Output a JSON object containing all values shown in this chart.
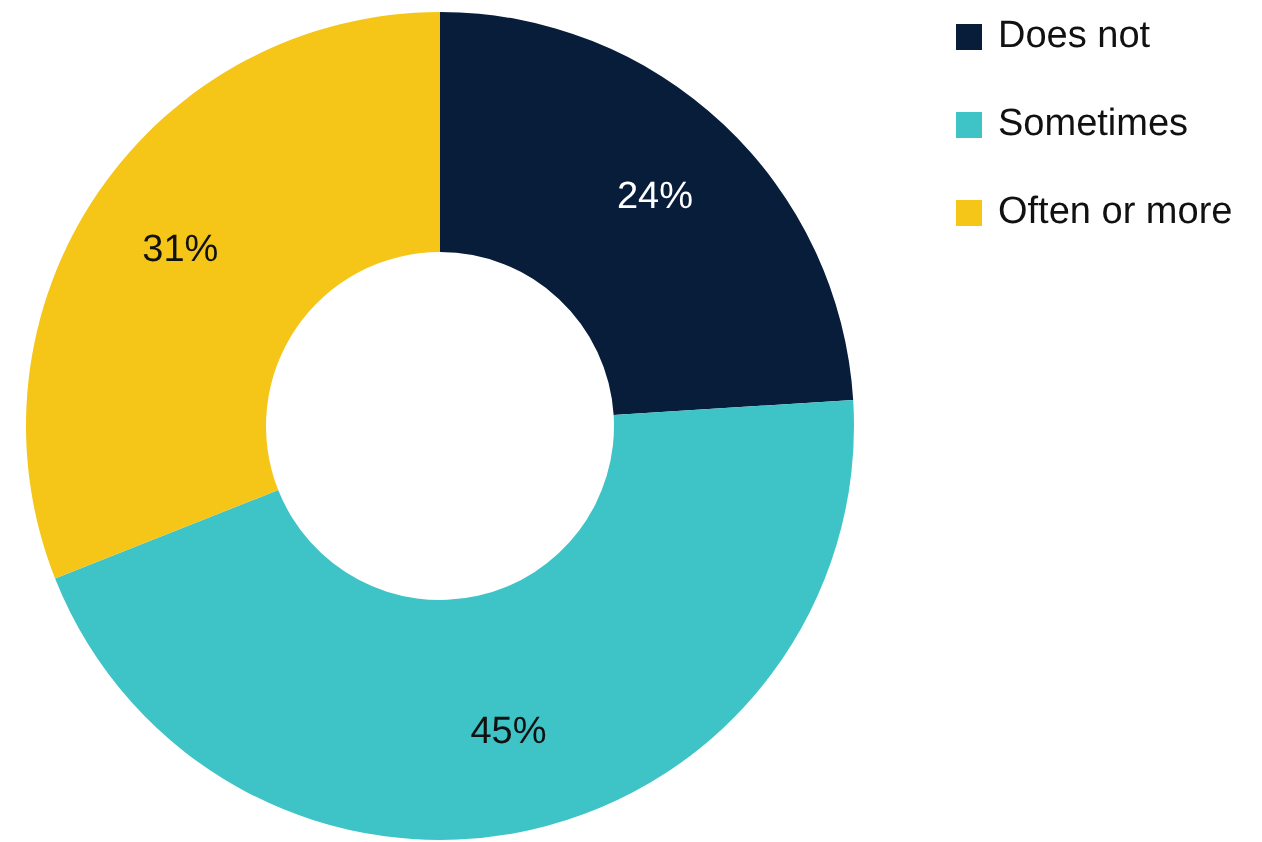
{
  "chart_data": {
    "type": "donut",
    "categories": [
      "Does not",
      "Sometimes",
      "Often or more"
    ],
    "values": [
      24,
      45,
      31
    ],
    "colors": [
      "#071d3a",
      "#3ec3c7",
      "#f5c518"
    ],
    "value_labels": [
      "24%",
      "45%",
      "31%"
    ],
    "legend": "top right"
  }
}
